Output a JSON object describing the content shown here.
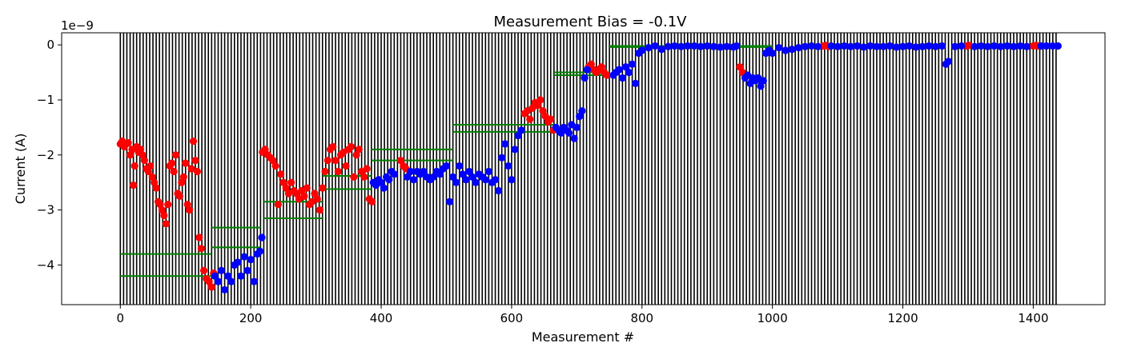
{
  "chart_data": {
    "type": "scatter",
    "title": "Measurement Bias = -0.1V",
    "xlabel": "Measurement #",
    "ylabel": "Current (A)",
    "y_offset_label": "1e−9",
    "xlim": [
      -90,
      1510
    ],
    "ylim": [
      -4.72e-09,
      2.2e-10
    ],
    "xticks": [
      0,
      200,
      400,
      600,
      800,
      1000,
      1200,
      1400
    ],
    "yticks": [
      -4e-09,
      -3e-09,
      -2e-09,
      -1e-09,
      0
    ],
    "ytick_labels": [
      "−4",
      "−3",
      "−2",
      "−1",
      "0"
    ],
    "grid": false,
    "vertical_lines": {
      "start": 0,
      "end": 1435,
      "step": 5,
      "color": "#000000"
    },
    "colors": {
      "red": "#ff0000",
      "blue": "#0000ff",
      "green": "#008000"
    },
    "green_segments": [
      {
        "x": [
          0,
          140
        ],
        "y": -3.8e-09
      },
      {
        "x": [
          0,
          140
        ],
        "y": -4.2e-09
      },
      {
        "x": [
          140,
          215
        ],
        "y": -3.32e-09
      },
      {
        "x": [
          140,
          215
        ],
        "y": -3.68e-09
      },
      {
        "x": [
          220,
          310
        ],
        "y": -2.85e-09
      },
      {
        "x": [
          220,
          310
        ],
        "y": -3.15e-09
      },
      {
        "x": [
          310,
          385
        ],
        "y": -2.38e-09
      },
      {
        "x": [
          310,
          385
        ],
        "y": -2.62e-09
      },
      {
        "x": [
          385,
          510
        ],
        "y": -1.9e-09
      },
      {
        "x": [
          385,
          510
        ],
        "y": -2.1e-09
      },
      {
        "x": [
          510,
          665
        ],
        "y": -1.45e-09
      },
      {
        "x": [
          510,
          665
        ],
        "y": -1.58e-09
      },
      {
        "x": [
          665,
          750
        ],
        "y": -5e-10
      },
      {
        "x": [
          665,
          750
        ],
        "y": -5.5e-10
      },
      {
        "x": [
          750,
          1000
        ],
        "y": -2e-11
      },
      {
        "x": [
          750,
          1000
        ],
        "y": -4e-11
      }
    ],
    "series": [
      {
        "color": "red",
        "points": [
          [
            0,
            -1.8e-09
          ],
          [
            3,
            -1.75e-09
          ],
          [
            6,
            -1.85e-09
          ],
          [
            9,
            -1.8e-09
          ],
          [
            12,
            -1.78e-09
          ],
          [
            15,
            -2e-09
          ],
          [
            18,
            -1.9e-09
          ],
          [
            20,
            -2.55e-09
          ],
          [
            22,
            -2.2e-09
          ],
          [
            25,
            -1.85e-09
          ],
          [
            28,
            -1.95e-09
          ],
          [
            31,
            -1.9e-09
          ],
          [
            34,
            -2e-09
          ],
          [
            37,
            -2.1e-09
          ],
          [
            40,
            -2.25e-09
          ],
          [
            43,
            -2.3e-09
          ],
          [
            46,
            -2.2e-09
          ],
          [
            49,
            -2.4e-09
          ],
          [
            52,
            -2.5e-09
          ],
          [
            55,
            -2.6e-09
          ],
          [
            58,
            -2.85e-09
          ],
          [
            61,
            -2.9e-09
          ],
          [
            64,
            -3e-09
          ],
          [
            67,
            -3.1e-09
          ],
          [
            70,
            -3.25e-09
          ],
          [
            73,
            -2.9e-09
          ],
          [
            76,
            -2.2e-09
          ],
          [
            79,
            -2.15e-09
          ],
          [
            82,
            -2.3e-09
          ],
          [
            85,
            -2e-09
          ],
          [
            88,
            -2.7e-09
          ],
          [
            91,
            -2.75e-09
          ],
          [
            94,
            -2.5e-09
          ],
          [
            97,
            -2.4e-09
          ],
          [
            100,
            -2.15e-09
          ],
          [
            103,
            -2.9e-09
          ],
          [
            106,
            -3e-09
          ],
          [
            109,
            -2.25e-09
          ],
          [
            112,
            -1.75e-09
          ],
          [
            115,
            -2.1e-09
          ],
          [
            118,
            -2.3e-09
          ],
          [
            121,
            -3.5e-09
          ],
          [
            124,
            -3.7e-09
          ],
          [
            128,
            -4.1e-09
          ],
          [
            132,
            -4.25e-09
          ],
          [
            136,
            -4.3e-09
          ],
          [
            140,
            -4.4e-09
          ],
          [
            143,
            -4.15e-09
          ],
          [
            218,
            -1.95e-09
          ],
          [
            222,
            -1.9e-09
          ],
          [
            226,
            -2e-09
          ],
          [
            230,
            -2.05e-09
          ],
          [
            234,
            -2.1e-09
          ],
          [
            238,
            -2.2e-09
          ],
          [
            242,
            -2.9e-09
          ],
          [
            246,
            -2.35e-09
          ],
          [
            250,
            -2.5e-09
          ],
          [
            254,
            -2.6e-09
          ],
          [
            258,
            -2.7e-09
          ],
          [
            262,
            -2.5e-09
          ],
          [
            266,
            -2.65e-09
          ],
          [
            270,
            -2.7e-09
          ],
          [
            274,
            -2.8e-09
          ],
          [
            278,
            -2.65e-09
          ],
          [
            282,
            -2.75e-09
          ],
          [
            286,
            -2.6e-09
          ],
          [
            290,
            -2.9e-09
          ],
          [
            294,
            -2.85e-09
          ],
          [
            298,
            -2.7e-09
          ],
          [
            302,
            -2.8e-09
          ],
          [
            306,
            -3e-09
          ],
          [
            310,
            -2.6e-09
          ],
          [
            314,
            -2.3e-09
          ],
          [
            318,
            -2.1e-09
          ],
          [
            322,
            -1.9e-09
          ],
          [
            326,
            -1.85e-09
          ],
          [
            330,
            -2.1e-09
          ],
          [
            334,
            -2.3e-09
          ],
          [
            338,
            -2e-09
          ],
          [
            342,
            -1.95e-09
          ],
          [
            346,
            -2.2e-09
          ],
          [
            350,
            -1.9e-09
          ],
          [
            354,
            -1.85e-09
          ],
          [
            358,
            -2.4e-09
          ],
          [
            362,
            -2e-09
          ],
          [
            366,
            -1.9e-09
          ],
          [
            370,
            -2.3e-09
          ],
          [
            374,
            -2.4e-09
          ],
          [
            378,
            -2.25e-09
          ],
          [
            382,
            -2.8e-09
          ],
          [
            386,
            -2.85e-09
          ],
          [
            430,
            -2.1e-09
          ],
          [
            434,
            -2.2e-09
          ],
          [
            438,
            -2.25e-09
          ],
          [
            620,
            -1.25e-09
          ],
          [
            624,
            -1.2e-09
          ],
          [
            628,
            -1.35e-09
          ],
          [
            632,
            -1.15e-09
          ],
          [
            636,
            -1.05e-09
          ],
          [
            640,
            -1.1e-09
          ],
          [
            644,
            -1e-09
          ],
          [
            648,
            -1.2e-09
          ],
          [
            652,
            -1.3e-09
          ],
          [
            656,
            -1.4e-09
          ],
          [
            660,
            -1.35e-09
          ],
          [
            664,
            -1.55e-09
          ],
          [
            718,
            -4e-10
          ],
          [
            722,
            -3.5e-10
          ],
          [
            726,
            -4.5e-10
          ],
          [
            730,
            -5e-10
          ],
          [
            734,
            -4.5e-10
          ],
          [
            738,
            -4e-10
          ],
          [
            742,
            -5e-10
          ],
          [
            746,
            -5.5e-10
          ],
          [
            950,
            -4e-10
          ],
          [
            954,
            -5e-10
          ],
          [
            1078,
            -2e-11
          ],
          [
            1082,
            -1e-11
          ],
          [
            1086,
            -3e-11
          ],
          [
            1298,
            -2e-11
          ],
          [
            1302,
            -1e-11
          ],
          [
            1400,
            -2e-11
          ],
          [
            1404,
            -1e-11
          ],
          [
            1408,
            -2e-11
          ]
        ]
      },
      {
        "color": "blue",
        "points": [
          [
            145,
            -4.2e-09
          ],
          [
            150,
            -4.3e-09
          ],
          [
            155,
            -4.1e-09
          ],
          [
            160,
            -4.45e-09
          ],
          [
            165,
            -4.2e-09
          ],
          [
            170,
            -4.3e-09
          ],
          [
            175,
            -4e-09
          ],
          [
            180,
            -3.95e-09
          ],
          [
            185,
            -4.2e-09
          ],
          [
            190,
            -3.85e-09
          ],
          [
            195,
            -4.1e-09
          ],
          [
            200,
            -3.9e-09
          ],
          [
            205,
            -4.3e-09
          ],
          [
            210,
            -3.8e-09
          ],
          [
            214,
            -3.75e-09
          ],
          [
            217,
            -3.5e-09
          ],
          [
            388,
            -2.5e-09
          ],
          [
            392,
            -2.55e-09
          ],
          [
            396,
            -2.45e-09
          ],
          [
            400,
            -2.5e-09
          ],
          [
            404,
            -2.6e-09
          ],
          [
            408,
            -2.4e-09
          ],
          [
            412,
            -2.45e-09
          ],
          [
            416,
            -2.3e-09
          ],
          [
            420,
            -2.35e-09
          ],
          [
            440,
            -2.4e-09
          ],
          [
            445,
            -2.3e-09
          ],
          [
            450,
            -2.45e-09
          ],
          [
            455,
            -2.3e-09
          ],
          [
            460,
            -2.35e-09
          ],
          [
            465,
            -2.3e-09
          ],
          [
            470,
            -2.4e-09
          ],
          [
            475,
            -2.45e-09
          ],
          [
            480,
            -2.4e-09
          ],
          [
            485,
            -2.3e-09
          ],
          [
            490,
            -2.35e-09
          ],
          [
            495,
            -2.25e-09
          ],
          [
            500,
            -2.2e-09
          ],
          [
            505,
            -2.85e-09
          ],
          [
            510,
            -2.4e-09
          ],
          [
            515,
            -2.5e-09
          ],
          [
            520,
            -2.2e-09
          ],
          [
            525,
            -2.35e-09
          ],
          [
            530,
            -2.45e-09
          ],
          [
            535,
            -2.3e-09
          ],
          [
            540,
            -2.4e-09
          ],
          [
            545,
            -2.5e-09
          ],
          [
            550,
            -2.35e-09
          ],
          [
            555,
            -2.4e-09
          ],
          [
            560,
            -2.45e-09
          ],
          [
            565,
            -2.3e-09
          ],
          [
            570,
            -2.5e-09
          ],
          [
            575,
            -2.45e-09
          ],
          [
            580,
            -2.65e-09
          ],
          [
            585,
            -2.05e-09
          ],
          [
            590,
            -1.8e-09
          ],
          [
            595,
            -2.2e-09
          ],
          [
            600,
            -2.45e-09
          ],
          [
            605,
            -1.9e-09
          ],
          [
            610,
            -1.65e-09
          ],
          [
            615,
            -1.55e-09
          ],
          [
            668,
            -1.5e-09
          ],
          [
            672,
            -1.55e-09
          ],
          [
            676,
            -1.6e-09
          ],
          [
            680,
            -1.5e-09
          ],
          [
            684,
            -1.55e-09
          ],
          [
            688,
            -1.6e-09
          ],
          [
            692,
            -1.45e-09
          ],
          [
            696,
            -1.7e-09
          ],
          [
            700,
            -1.5e-09
          ],
          [
            704,
            -1.3e-09
          ],
          [
            708,
            -1.2e-09
          ],
          [
            712,
            -6e-10
          ],
          [
            716,
            -4.5e-10
          ],
          [
            756,
            -5.5e-10
          ],
          [
            760,
            -5e-10
          ],
          [
            765,
            -4.5e-10
          ],
          [
            770,
            -6e-10
          ],
          [
            775,
            -4e-10
          ],
          [
            780,
            -5e-10
          ],
          [
            785,
            -3.5e-10
          ],
          [
            790,
            -7e-10
          ],
          [
            795,
            -1.5e-10
          ],
          [
            800,
            -1e-10
          ],
          [
            810,
            -5e-11
          ],
          [
            820,
            -2e-11
          ],
          [
            830,
            -8e-11
          ],
          [
            840,
            -3e-11
          ],
          [
            850,
            -2e-11
          ],
          [
            860,
            -3e-11
          ],
          [
            870,
            -2e-11
          ],
          [
            880,
            -2e-11
          ],
          [
            890,
            -3e-11
          ],
          [
            900,
            -2e-11
          ],
          [
            910,
            -3e-11
          ],
          [
            920,
            -4e-11
          ],
          [
            930,
            -3e-11
          ],
          [
            940,
            -4e-11
          ],
          [
            945,
            -2e-11
          ],
          [
            958,
            -6e-10
          ],
          [
            962,
            -5.5e-10
          ],
          [
            966,
            -7e-10
          ],
          [
            970,
            -6e-10
          ],
          [
            974,
            -6.5e-10
          ],
          [
            978,
            -6e-10
          ],
          [
            982,
            -7.5e-10
          ],
          [
            986,
            -6.5e-10
          ],
          [
            990,
            -1.5e-10
          ],
          [
            995,
            -1e-10
          ],
          [
            1000,
            -1.5e-10
          ],
          [
            1010,
            -5e-11
          ],
          [
            1020,
            -1e-10
          ],
          [
            1030,
            -8e-11
          ],
          [
            1040,
            -5e-11
          ],
          [
            1050,
            -3e-11
          ],
          [
            1060,
            -2e-11
          ],
          [
            1070,
            -3e-11
          ],
          [
            1090,
            -2e-11
          ],
          [
            1100,
            -3e-11
          ],
          [
            1110,
            -2e-11
          ],
          [
            1120,
            -3e-11
          ],
          [
            1130,
            -2e-11
          ],
          [
            1140,
            -4e-11
          ],
          [
            1150,
            -2e-11
          ],
          [
            1160,
            -3e-11
          ],
          [
            1170,
            -3e-11
          ],
          [
            1180,
            -2e-11
          ],
          [
            1190,
            -4e-11
          ],
          [
            1200,
            -3e-11
          ],
          [
            1210,
            -2e-11
          ],
          [
            1220,
            -4e-11
          ],
          [
            1230,
            -3e-11
          ],
          [
            1240,
            -2e-11
          ],
          [
            1250,
            -3e-11
          ],
          [
            1260,
            -2e-11
          ],
          [
            1266,
            -3.5e-10
          ],
          [
            1270,
            -3e-10
          ],
          [
            1280,
            -3e-11
          ],
          [
            1290,
            -2e-11
          ],
          [
            1310,
            -3e-11
          ],
          [
            1320,
            -2e-11
          ],
          [
            1330,
            -3e-11
          ],
          [
            1340,
            -2e-11
          ],
          [
            1350,
            -3e-11
          ],
          [
            1360,
            -2e-11
          ],
          [
            1370,
            -3e-11
          ],
          [
            1380,
            -2e-11
          ],
          [
            1390,
            -3e-11
          ],
          [
            1412,
            -2e-11
          ],
          [
            1420,
            -2e-11
          ],
          [
            1430,
            -2e-11
          ],
          [
            1438,
            -2e-11
          ]
        ]
      }
    ]
  }
}
